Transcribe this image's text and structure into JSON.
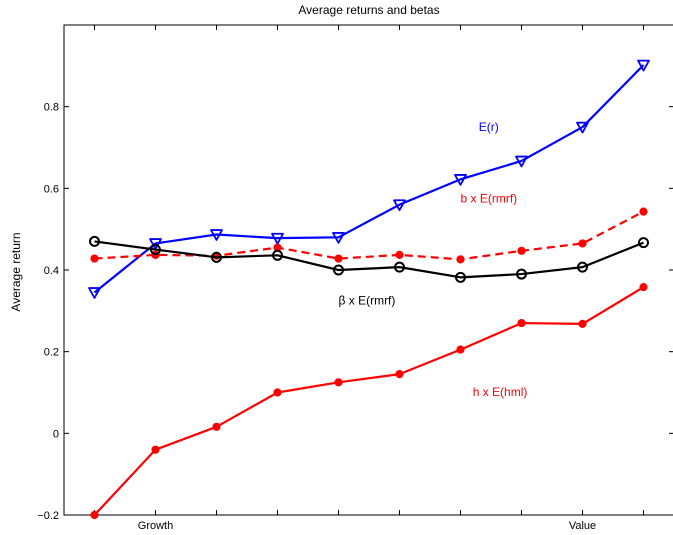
{
  "chart_data": {
    "type": "line",
    "title": "Average returns and betas",
    "xlabel": "",
    "ylabel": "Average return",
    "xlim": [
      0.5,
      10.5
    ],
    "ylim": [
      -0.2,
      1.0
    ],
    "x": [
      1,
      2,
      3,
      4,
      5,
      6,
      7,
      8,
      9,
      10
    ],
    "x_tick_labels": [
      {
        "x": 2,
        "label": "Growth"
      },
      {
        "x": 9,
        "label": "Value"
      }
    ],
    "y_ticks": [
      -0.2,
      0,
      0.2,
      0.4,
      0.6,
      0.8
    ],
    "y_tick_labels": [
      "−0.2",
      "0",
      "0.2",
      "0.4",
      "0.6",
      "0.8"
    ],
    "grid": false,
    "series": [
      {
        "name": "E(r)",
        "color": "#0000ff",
        "dash": "solid",
        "marker": "triangle-down",
        "values": [
          0.345,
          0.465,
          0.487,
          0.478,
          0.48,
          0.56,
          0.622,
          0.667,
          0.75,
          0.902
        ],
        "annotation": {
          "text": "E(r)",
          "x": 7.3,
          "y": 0.74
        }
      },
      {
        "name": "b x E(rmrf)",
        "color": "#ff0000",
        "dash": "dashed",
        "marker": "dot",
        "values": [
          0.428,
          0.437,
          0.435,
          0.455,
          0.428,
          0.437,
          0.426,
          0.447,
          0.465,
          0.543
        ],
        "annotation": {
          "text": "b x E(rmrf)",
          "x": 7.0,
          "y": 0.565
        }
      },
      {
        "name": "β x E(rmrf)",
        "color": "#000000",
        "dash": "solid",
        "marker": "circle",
        "values": [
          0.47,
          0.45,
          0.431,
          0.436,
          0.4,
          0.407,
          0.382,
          0.39,
          0.407,
          0.467
        ],
        "annotation": {
          "text": "β x E(rmrf)",
          "x": 5.0,
          "y": 0.315
        }
      },
      {
        "name": "h x E(hml)",
        "color": "#ff0000",
        "dash": "solid",
        "marker": "dot",
        "values": [
          -0.2,
          -0.04,
          0.016,
          0.1,
          0.125,
          0.145,
          0.205,
          0.27,
          0.268,
          0.358
        ],
        "annotation": {
          "text": "h x E(hml)",
          "x": 7.2,
          "y": 0.092
        }
      }
    ]
  }
}
